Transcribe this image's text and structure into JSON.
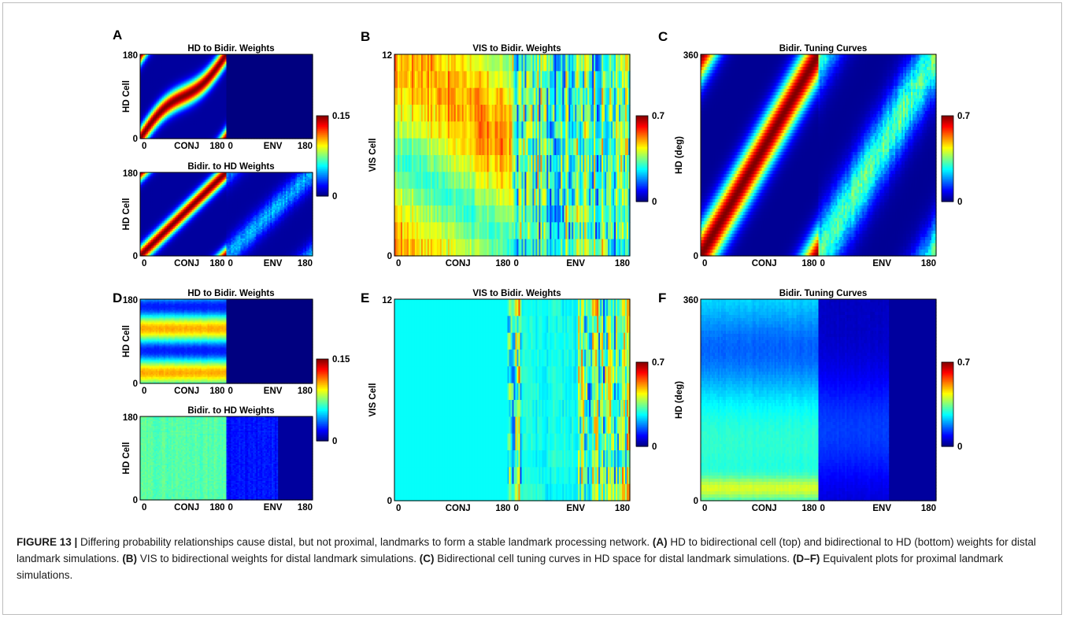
{
  "figure": {
    "number": "FIGURE 13 |",
    "caption_parts": [
      {
        "t": " Differing probability relationships cause distal, but not proximal, landmarks to form a stable landmark processing network. ",
        "b": false
      },
      {
        "t": "(A)",
        "b": true
      },
      {
        "t": " HD to bidirectional cell (top) and bidirectional to HD (bottom) weights for distal landmark simulations. ",
        "b": false
      },
      {
        "t": "(B)",
        "b": true
      },
      {
        "t": " VIS to bidirectional weights for distal landmark simulations. ",
        "b": false
      },
      {
        "t": "(C)",
        "b": true
      },
      {
        "t": " Bidirectional cell tuning curves in HD space for distal landmark simulations. ",
        "b": false
      },
      {
        "t": "(D–F)",
        "b": true
      },
      {
        "t": " Equivalent plots for proximal landmark simulations.",
        "b": false
      }
    ]
  },
  "colormap": "jet",
  "panel_letters": [
    {
      "id": "A",
      "label": "A"
    },
    {
      "id": "B",
      "label": "B"
    },
    {
      "id": "C",
      "label": "C"
    },
    {
      "id": "D",
      "label": "D"
    },
    {
      "id": "E",
      "label": "E"
    },
    {
      "id": "F",
      "label": "F"
    }
  ],
  "chart_data": [
    {
      "id": "A-top",
      "type": "heatmap",
      "title": "HD to Bidir. Weights",
      "ylabel": "HD Cell",
      "yticks": [
        "0",
        "180"
      ],
      "xticks": [
        "0",
        "180",
        "0",
        "180"
      ],
      "xsection_labels": [
        "CONJ",
        "ENV"
      ],
      "pattern": "band_left_blank_right"
    },
    {
      "id": "A-bottom",
      "type": "heatmap",
      "title": "Bidir. to HD Weights",
      "ylabel": "HD Cell",
      "yticks": [
        "0",
        "180"
      ],
      "xticks": [
        "0",
        "180",
        "0",
        "180"
      ],
      "xsection_labels": [
        "CONJ",
        "ENV"
      ],
      "pattern": "band_left_faint_right"
    },
    {
      "id": "A-colorbar",
      "type": "colorbar",
      "min_label": "0",
      "max_label": "0.15",
      "vmin": 0,
      "vmax": 0.15
    },
    {
      "id": "B",
      "type": "heatmap",
      "title": "VIS to Bidir. Weights",
      "ylabel": "VIS Cell",
      "yticks": [
        "0",
        "12"
      ],
      "xticks": [
        "0",
        "180",
        "0",
        "180"
      ],
      "xsection_labels": [
        "CONJ",
        "ENV"
      ],
      "pattern": "vis_stripes_distal"
    },
    {
      "id": "B-colorbar",
      "type": "colorbar",
      "min_label": "0",
      "max_label": "0.7",
      "vmin": 0,
      "vmax": 0.7
    },
    {
      "id": "C",
      "type": "heatmap",
      "title": "Bidir. Tuning Curves",
      "ylabel": "HD (deg)",
      "yticks": [
        "0",
        "360"
      ],
      "xticks": [
        "0",
        "180",
        "0",
        "180"
      ],
      "xsection_labels": [
        "CONJ",
        "ENV"
      ],
      "pattern": "tuning_distal"
    },
    {
      "id": "C-colorbar",
      "type": "colorbar",
      "min_label": "0",
      "max_label": "0.7",
      "vmin": 0,
      "vmax": 0.7
    },
    {
      "id": "D-top",
      "type": "heatmap",
      "title": "HD to Bidir. Weights",
      "ylabel": "HD Cell",
      "yticks": [
        "0",
        "180"
      ],
      "xticks": [
        "0",
        "180",
        "0",
        "180"
      ],
      "xsection_labels": [
        "CONJ",
        "ENV"
      ],
      "pattern": "horizontal_bands_left"
    },
    {
      "id": "D-bottom",
      "type": "heatmap",
      "title": "Bidir. to HD Weights",
      "ylabel": "HD Cell",
      "yticks": [
        "0",
        "180"
      ],
      "xticks": [
        "0",
        "180",
        "0",
        "180"
      ],
      "xsection_labels": [
        "CONJ",
        "ENV"
      ],
      "pattern": "uniform_left_dim_right"
    },
    {
      "id": "D-colorbar",
      "type": "colorbar",
      "min_label": "0",
      "max_label": "0.15",
      "vmin": 0,
      "vmax": 0.15
    },
    {
      "id": "E",
      "type": "heatmap",
      "title": "VIS to Bidir. Weights",
      "ylabel": "VIS Cell",
      "yticks": [
        "0",
        "12"
      ],
      "xticks": [
        "0",
        "180",
        "0",
        "180"
      ],
      "xsection_labels": [
        "CONJ",
        "ENV"
      ],
      "pattern": "vis_proximal"
    },
    {
      "id": "E-colorbar",
      "type": "colorbar",
      "min_label": "0",
      "max_label": "0.7",
      "vmin": 0,
      "vmax": 0.7
    },
    {
      "id": "F",
      "type": "heatmap",
      "title": "Bidir. Tuning Curves",
      "ylabel": "HD (deg)",
      "yticks": [
        "0",
        "360"
      ],
      "xticks": [
        "0",
        "180",
        "0",
        "180"
      ],
      "xsection_labels": [
        "CONJ",
        "ENV"
      ],
      "pattern": "tuning_proximal"
    },
    {
      "id": "F-colorbar",
      "type": "colorbar",
      "min_label": "0",
      "max_label": "0.7",
      "vmin": 0,
      "vmax": 0.7
    }
  ]
}
